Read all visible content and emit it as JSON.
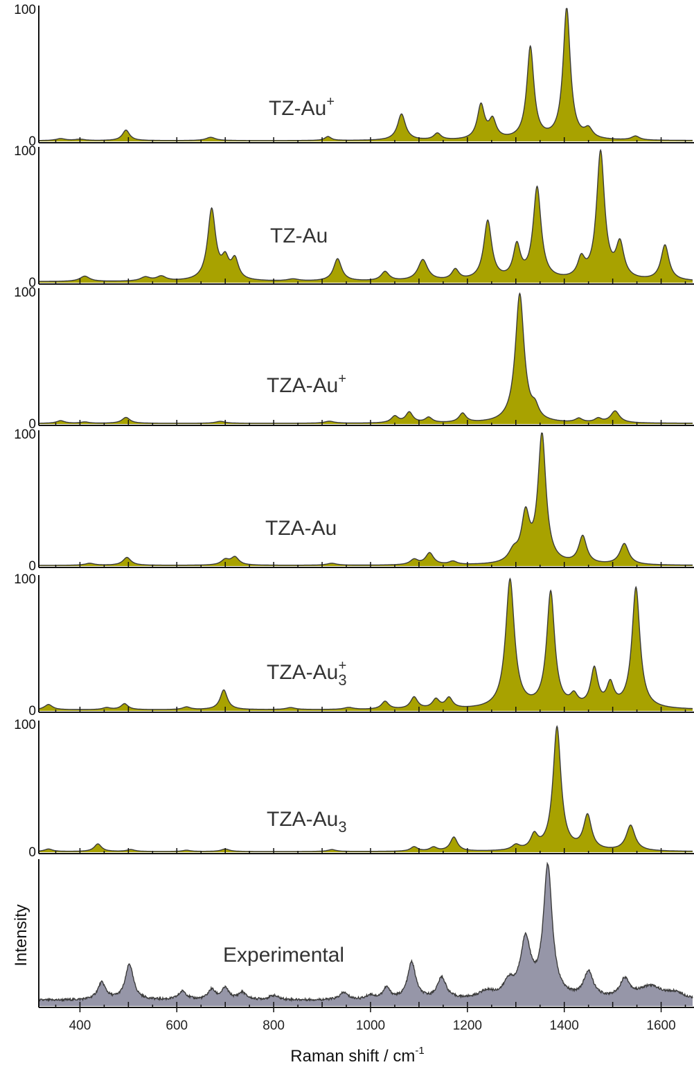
{
  "chart_data": {
    "type": "area",
    "layout": "stacked-panels",
    "xlabel": "Raman shift / cm",
    "xlabel_superscript": "-1",
    "ylabel": "Intensity",
    "xlim": [
      315,
      1665
    ],
    "xticks": [
      400,
      600,
      800,
      1000,
      1200,
      1400,
      1600
    ],
    "grid": false,
    "colors": {
      "simulated_fill": "#a8a200",
      "experimental_fill": "#9696a8",
      "outline": "#3a3a3a"
    },
    "panels": [
      {
        "label": "TZ-Au",
        "label_sup": "+",
        "label_sub": "",
        "ylim": [
          0,
          100
        ],
        "yticks": [
          "0",
          "100"
        ],
        "baseline": 0.5,
        "peaks": [
          {
            "x": 360,
            "h": 1.5,
            "w": 12
          },
          {
            "x": 400,
            "h": 1,
            "w": 12
          },
          {
            "x": 495,
            "h": 8,
            "w": 9
          },
          {
            "x": 670,
            "h": 2.5,
            "w": 12
          },
          {
            "x": 912,
            "h": 3,
            "w": 8
          },
          {
            "x": 1064,
            "h": 20,
            "w": 10
          },
          {
            "x": 1138,
            "h": 5,
            "w": 9
          },
          {
            "x": 1228,
            "h": 26,
            "w": 9
          },
          {
            "x": 1252,
            "h": 14,
            "w": 9
          },
          {
            "x": 1330,
            "h": 70,
            "w": 9
          },
          {
            "x": 1405,
            "h": 100,
            "w": 9
          },
          {
            "x": 1450,
            "h": 7,
            "w": 10
          },
          {
            "x": 1547,
            "h": 3,
            "w": 10
          }
        ]
      },
      {
        "label": "TZ-Au",
        "label_sup": "",
        "label_sub": "",
        "ylim": [
          0,
          100
        ],
        "yticks": [
          "0",
          "100"
        ],
        "baseline": 0.8,
        "peaks": [
          {
            "x": 410,
            "h": 4,
            "w": 12
          },
          {
            "x": 535,
            "h": 3,
            "w": 12
          },
          {
            "x": 568,
            "h": 3.5,
            "w": 12
          },
          {
            "x": 672,
            "h": 54,
            "w": 10
          },
          {
            "x": 700,
            "h": 14,
            "w": 9
          },
          {
            "x": 720,
            "h": 15,
            "w": 9
          },
          {
            "x": 840,
            "h": 1.5,
            "w": 14
          },
          {
            "x": 932,
            "h": 17,
            "w": 10
          },
          {
            "x": 1030,
            "h": 7,
            "w": 10
          },
          {
            "x": 1108,
            "h": 16,
            "w": 12
          },
          {
            "x": 1175,
            "h": 8,
            "w": 9
          },
          {
            "x": 1242,
            "h": 45,
            "w": 10
          },
          {
            "x": 1302,
            "h": 25,
            "w": 9
          },
          {
            "x": 1344,
            "h": 70,
            "w": 10
          },
          {
            "x": 1435,
            "h": 14,
            "w": 9
          },
          {
            "x": 1475,
            "h": 97,
            "w": 10
          },
          {
            "x": 1515,
            "h": 26,
            "w": 10
          },
          {
            "x": 1608,
            "h": 27,
            "w": 10
          }
        ]
      },
      {
        "label": "TZA-Au",
        "label_sup": "+",
        "label_sub": "",
        "ylim": [
          0,
          100
        ],
        "yticks": [
          "0",
          "100"
        ],
        "baseline": 0.5,
        "peaks": [
          {
            "x": 360,
            "h": 2,
            "w": 10
          },
          {
            "x": 410,
            "h": 1,
            "w": 10
          },
          {
            "x": 495,
            "h": 4.5,
            "w": 10
          },
          {
            "x": 690,
            "h": 1.5,
            "w": 12
          },
          {
            "x": 915,
            "h": 1.5,
            "w": 12
          },
          {
            "x": 1050,
            "h": 5,
            "w": 9
          },
          {
            "x": 1080,
            "h": 8,
            "w": 9
          },
          {
            "x": 1120,
            "h": 4,
            "w": 9
          },
          {
            "x": 1190,
            "h": 7,
            "w": 9
          },
          {
            "x": 1308,
            "h": 98,
            "w": 11
          },
          {
            "x": 1340,
            "h": 8,
            "w": 9
          },
          {
            "x": 1430,
            "h": 3,
            "w": 9
          },
          {
            "x": 1470,
            "h": 3,
            "w": 9
          },
          {
            "x": 1505,
            "h": 9,
            "w": 11
          }
        ]
      },
      {
        "label": "TZA-Au",
        "label_sup": "",
        "label_sub": "",
        "ylim": [
          0,
          100
        ],
        "yticks": [
          "0",
          "100"
        ],
        "baseline": 0.5,
        "peaks": [
          {
            "x": 420,
            "h": 1.5,
            "w": 12
          },
          {
            "x": 497,
            "h": 6,
            "w": 10
          },
          {
            "x": 700,
            "h": 4,
            "w": 10
          },
          {
            "x": 720,
            "h": 6,
            "w": 10
          },
          {
            "x": 920,
            "h": 1.5,
            "w": 12
          },
          {
            "x": 1090,
            "h": 4,
            "w": 10
          },
          {
            "x": 1122,
            "h": 9,
            "w": 10
          },
          {
            "x": 1170,
            "h": 2.5,
            "w": 10
          },
          {
            "x": 1295,
            "h": 8,
            "w": 12
          },
          {
            "x": 1320,
            "h": 35,
            "w": 10
          },
          {
            "x": 1354,
            "h": 98,
            "w": 10
          },
          {
            "x": 1438,
            "h": 21,
            "w": 10
          },
          {
            "x": 1524,
            "h": 16,
            "w": 11
          }
        ]
      },
      {
        "label": "TZA-Au",
        "label_sup": "+",
        "label_sub": "3",
        "ylim": [
          0,
          100
        ],
        "yticks": [
          "0",
          "100"
        ],
        "baseline": 0.8,
        "peaks": [
          {
            "x": 335,
            "h": 4,
            "w": 10
          },
          {
            "x": 455,
            "h": 1.5,
            "w": 10
          },
          {
            "x": 492,
            "h": 4.5,
            "w": 9
          },
          {
            "x": 620,
            "h": 2,
            "w": 10
          },
          {
            "x": 697,
            "h": 15,
            "w": 9
          },
          {
            "x": 835,
            "h": 1.5,
            "w": 12
          },
          {
            "x": 955,
            "h": 1.5,
            "w": 12
          },
          {
            "x": 1030,
            "h": 6,
            "w": 9
          },
          {
            "x": 1090,
            "h": 9,
            "w": 9
          },
          {
            "x": 1135,
            "h": 7,
            "w": 9
          },
          {
            "x": 1162,
            "h": 8,
            "w": 9
          },
          {
            "x": 1288,
            "h": 98,
            "w": 11
          },
          {
            "x": 1372,
            "h": 88,
            "w": 10
          },
          {
            "x": 1420,
            "h": 8,
            "w": 9
          },
          {
            "x": 1462,
            "h": 29,
            "w": 9
          },
          {
            "x": 1495,
            "h": 17,
            "w": 9
          },
          {
            "x": 1548,
            "h": 92,
            "w": 10
          }
        ]
      },
      {
        "label": "TZA-Au",
        "label_sup": "",
        "label_sub": "3",
        "ylim": [
          0,
          100
        ],
        "yticks": [
          "0",
          "100"
        ],
        "baseline": 0.5,
        "peaks": [
          {
            "x": 335,
            "h": 2,
            "w": 10
          },
          {
            "x": 437,
            "h": 6,
            "w": 9
          },
          {
            "x": 505,
            "h": 1.5,
            "w": 10
          },
          {
            "x": 620,
            "h": 1,
            "w": 10
          },
          {
            "x": 700,
            "h": 2,
            "w": 10
          },
          {
            "x": 920,
            "h": 1.5,
            "w": 10
          },
          {
            "x": 1090,
            "h": 3.5,
            "w": 9
          },
          {
            "x": 1130,
            "h": 3,
            "w": 9
          },
          {
            "x": 1172,
            "h": 11,
            "w": 9
          },
          {
            "x": 1300,
            "h": 4,
            "w": 10
          },
          {
            "x": 1338,
            "h": 11,
            "w": 9
          },
          {
            "x": 1385,
            "h": 97,
            "w": 10
          },
          {
            "x": 1448,
            "h": 27,
            "w": 10
          },
          {
            "x": 1537,
            "h": 20,
            "w": 11
          }
        ]
      },
      {
        "label": "Experimental",
        "label_sup": "",
        "label_sub": "",
        "ylim": [
          0,
          100
        ],
        "yticks": [],
        "baseline": 4,
        "peaks": [
          {
            "x": 445,
            "h": 12,
            "w": 10
          },
          {
            "x": 502,
            "h": 25,
            "w": 10
          },
          {
            "x": 612,
            "h": 6,
            "w": 10
          },
          {
            "x": 672,
            "h": 7,
            "w": 9
          },
          {
            "x": 700,
            "h": 8,
            "w": 9
          },
          {
            "x": 735,
            "h": 5,
            "w": 10
          },
          {
            "x": 800,
            "h": 3,
            "w": 12
          },
          {
            "x": 945,
            "h": 5,
            "w": 10
          },
          {
            "x": 1000,
            "h": 3,
            "w": 10
          },
          {
            "x": 1033,
            "h": 8,
            "w": 9
          },
          {
            "x": 1085,
            "h": 26,
            "w": 10
          },
          {
            "x": 1147,
            "h": 15,
            "w": 11
          },
          {
            "x": 1240,
            "h": 5,
            "w": 20
          },
          {
            "x": 1285,
            "h": 10,
            "w": 12
          },
          {
            "x": 1320,
            "h": 40,
            "w": 13
          },
          {
            "x": 1366,
            "h": 92,
            "w": 11
          },
          {
            "x": 1450,
            "h": 18,
            "w": 12
          },
          {
            "x": 1525,
            "h": 13,
            "w": 12
          },
          {
            "x": 1578,
            "h": 9,
            "w": 30
          },
          {
            "x": 1630,
            "h": 4,
            "w": 20
          }
        ]
      }
    ]
  }
}
